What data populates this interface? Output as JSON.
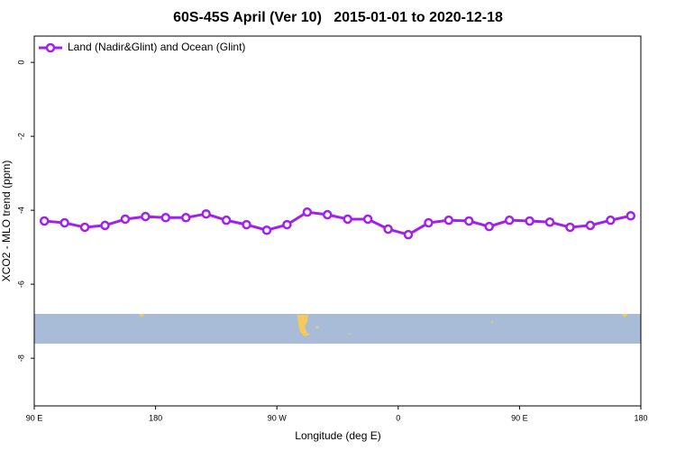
{
  "chart_data": {
    "type": "line",
    "title": "60S-45S April (Ver 10)   2015-01-01 to 2020-12-18",
    "xlabel": "Longitude (deg E)",
    "ylabel": "XCO2 - MLO trend (ppm)",
    "x": [
      97.5,
      112.5,
      127.5,
      142.5,
      157.5,
      172.5,
      187.5,
      202.5,
      217.5,
      232.5,
      247.5,
      262.5,
      277.5,
      292.5,
      307.5,
      322.5,
      337.5,
      352.5,
      367.5,
      382.5,
      397.5,
      412.5,
      427.5,
      442.5,
      457.5,
      472.5,
      487.5,
      502.5,
      517.5,
      532.5
    ],
    "series": [
      {
        "name": "Land (Nadir&Glint) and Ocean (Glint)",
        "color": "#a020f0",
        "values": [
          -4.29,
          -4.34,
          -4.46,
          -4.41,
          -4.24,
          -4.17,
          -4.2,
          -4.2,
          -4.1,
          -4.27,
          -4.39,
          -4.54,
          -4.39,
          -4.05,
          -4.12,
          -4.24,
          -4.24,
          -4.51,
          -4.66,
          -4.34,
          -4.27,
          -4.29,
          -4.44,
          -4.27,
          -4.29,
          -4.32,
          -4.46,
          -4.41,
          -4.27,
          -4.15
        ]
      }
    ],
    "xlim": [
      90,
      540
    ],
    "xticks": [
      {
        "value": 90,
        "label": "90 E"
      },
      {
        "value": 180,
        "label": "180"
      },
      {
        "value": 270,
        "label": "90 W"
      },
      {
        "value": 360,
        "label": "0"
      },
      {
        "value": 450,
        "label": "90 E"
      },
      {
        "value": 540,
        "label": "180"
      }
    ],
    "ylim": [
      -9.29,
      0.71
    ],
    "yticks": [
      0,
      -2,
      -4,
      -6,
      -8
    ],
    "legend": "top-left"
  }
}
